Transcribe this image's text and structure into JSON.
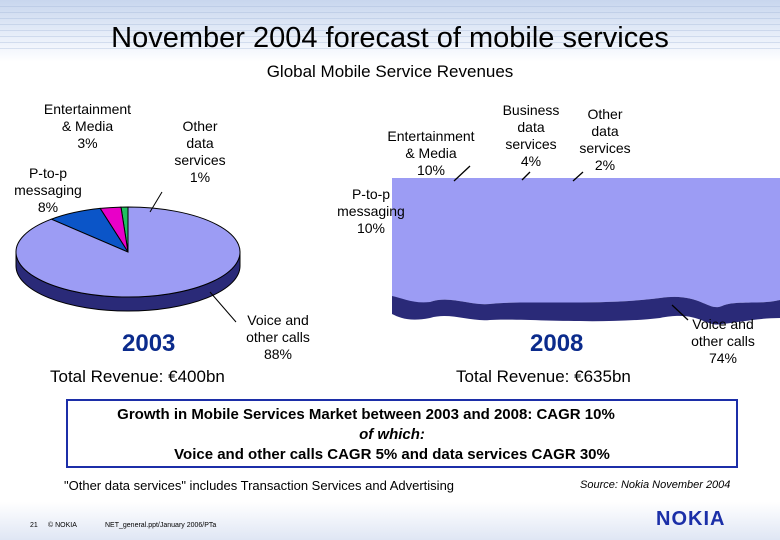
{
  "slide": {
    "title": "November 2004 forecast of mobile services",
    "subtitle": "Global Mobile Service Revenues",
    "growth_line1": "Growth in Mobile Services Market between 2003 and 2008: CAGR 10%",
    "growth_line2": "of which:",
    "growth_line3": "Voice and other calls CAGR 5% and data services CAGR 30%",
    "footnote": "\"Other data services\" includes Transaction Services and Advertising",
    "source": "Source: Nokia November 2004",
    "page_number": "21",
    "copyright": "© NOKIA",
    "filename": "NET_general.ppt/January 2006/PTa",
    "logo": "NOKIA"
  },
  "chart_data": [
    {
      "type": "pie",
      "year": "2003",
      "total": "Total Revenue: €400bn",
      "slices": [
        {
          "name": "Voice and other calls",
          "value": 88,
          "color": "#9c9cf4"
        },
        {
          "name": "P-to-p messaging",
          "value": 8,
          "color": "#0b55c8"
        },
        {
          "name": "Entertainment & Media",
          "value": 3,
          "color": "#e800c8"
        },
        {
          "name": "Other data services",
          "value": 1,
          "color": "#20c060"
        }
      ],
      "labels": {
        "voice": [
          "Voice and",
          "other calls",
          "88%"
        ],
        "p2p": [
          "P-to-p",
          "messaging",
          "8%"
        ],
        "ent": [
          "Entertainment",
          "& Media",
          "3%"
        ],
        "other": [
          "Other",
          "data",
          "services",
          "1%"
        ]
      }
    },
    {
      "type": "pie",
      "year": "2008",
      "total": "Total Revenue: €635bn",
      "slices": [
        {
          "name": "Voice and other calls",
          "value": 74,
          "color": "#9c9cf4"
        },
        {
          "name": "P-to-p messaging",
          "value": 10
        },
        {
          "name": "Entertainment & Media",
          "value": 10
        },
        {
          "name": "Business data services",
          "value": 4
        },
        {
          "name": "Other data services",
          "value": 2
        }
      ],
      "labels": {
        "voice": [
          "Voice and",
          "other calls",
          "74%"
        ],
        "p2p": [
          "P-to-p",
          "messaging",
          "10%"
        ],
        "ent": [
          "Entertainment",
          "& Media",
          "10%"
        ],
        "business": [
          "Business",
          "data",
          "services",
          "4%"
        ],
        "other": [
          "Other",
          "data",
          "services",
          "2%"
        ]
      }
    }
  ]
}
